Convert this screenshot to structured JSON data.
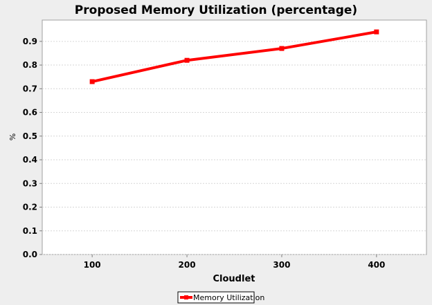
{
  "chart_data": {
    "type": "line",
    "title": "Proposed Memory Utilization (percentage)",
    "xlabel": "Cloudlet",
    "ylabel": "%",
    "categories": [
      "100",
      "200",
      "300",
      "400"
    ],
    "series": [
      {
        "name": "Memory Utilization",
        "values": [
          0.73,
          0.82,
          0.87,
          0.94
        ],
        "color": "#ff0000"
      }
    ],
    "ylim": [
      0.0,
      0.99
    ],
    "yticks": [
      0.0,
      0.1,
      0.2,
      0.3,
      0.4,
      0.5,
      0.6,
      0.7,
      0.8,
      0.9
    ],
    "ytick_labels": [
      "0.0",
      "0.1",
      "0.2",
      "0.3",
      "0.4",
      "0.5",
      "0.6",
      "0.7",
      "0.8",
      "0.9"
    ],
    "grid": true,
    "legend_position": "bottom-center"
  }
}
